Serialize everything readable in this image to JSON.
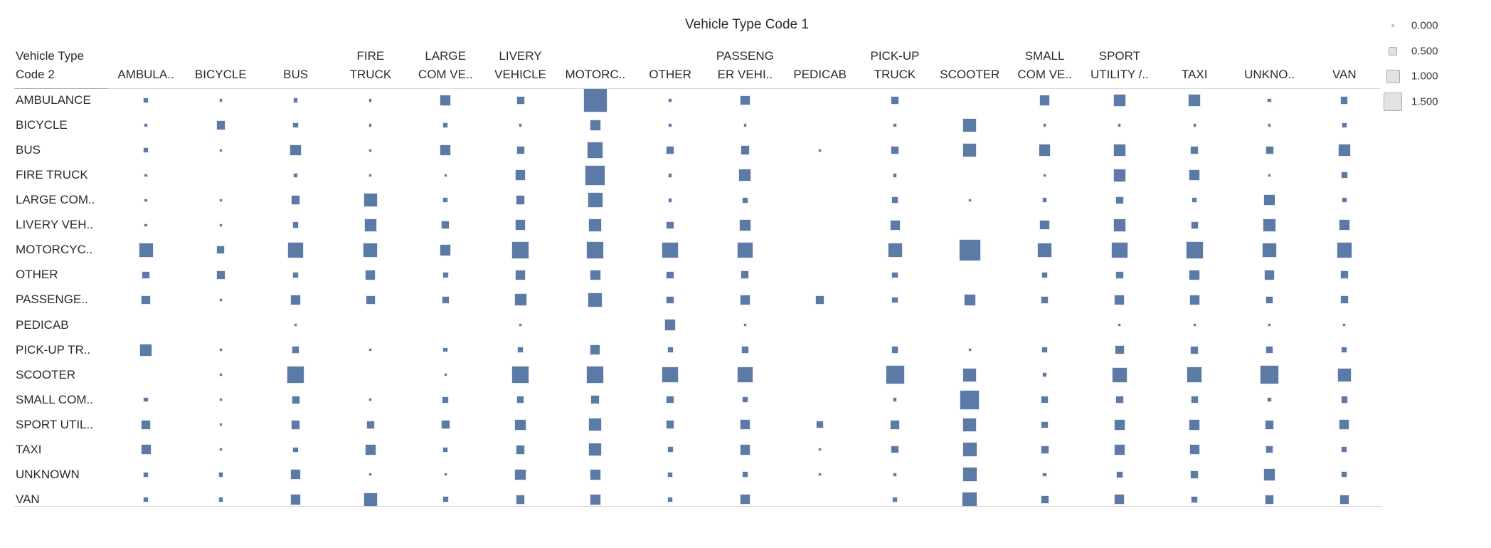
{
  "title": "Vehicle Type Code 1",
  "corner_label": "Vehicle Type\nCode 2",
  "colors": {
    "mark": "#5b7ba6",
    "mark_edge": "#e3e8f1",
    "legend_fill": "#e3e3e3",
    "legend_edge": "#ababab",
    "legend_dot": "#c0c0c0",
    "rule_light": "#d6d6d6",
    "rule_dark": "#a8a8a8",
    "text": "#2b2b2b"
  },
  "legend": {
    "items": [
      {
        "label": "0.000",
        "value": 0.0
      },
      {
        "label": "0.500",
        "value": 0.5
      },
      {
        "label": "1.000",
        "value": 1.0
      },
      {
        "label": "1.500",
        "value": 1.5
      }
    ]
  },
  "chart_data": {
    "type": "heatmap",
    "subtype": "size-encoded-matrix",
    "title": "Vehicle Type Code 1",
    "xlabel": "Vehicle Type Code 1",
    "ylabel": "Vehicle Type Code 2",
    "size_legend_ticks": [
      0.0,
      0.5,
      1.0,
      1.5
    ],
    "columns": [
      "AMBULA..",
      "BICYCLE",
      "BUS",
      "FIRE\nTRUCK",
      "LARGE\nCOM VE..",
      "LIVERY\nVEHICLE",
      "MOTORC..",
      "OTHER",
      "PASSENG\nER VEHI..",
      "PEDICAB",
      "PICK-UP\nTRUCK",
      "SCOOTER",
      "SMALL\nCOM VE..",
      "SPORT\nUTILITY /..",
      "TAXI",
      "UNKNO..",
      "VAN"
    ],
    "rows": [
      "AMBULANCE",
      "BICYCLE",
      "BUS",
      "FIRE TRUCK",
      "LARGE COM..",
      "LIVERY VEH..",
      "MOTORCYC..",
      "OTHER",
      "PASSENGE..",
      "PEDICAB",
      "PICK-UP TR..",
      "SCOOTER",
      "SMALL COM..",
      "SPORT UTIL..",
      "TAXI",
      "UNKNOWN",
      "VAN"
    ],
    "matrix": [
      [
        0.1,
        0.0,
        0.1,
        0.0,
        0.65,
        0.4,
        1.9,
        0.05,
        0.55,
        null,
        0.4,
        null,
        0.65,
        0.8,
        0.8,
        0.05,
        0.35
      ],
      [
        0.0,
        0.5,
        0.15,
        0.0,
        0.15,
        0.0,
        0.7,
        0.05,
        0.0,
        null,
        0.0,
        0.95,
        0.0,
        0.0,
        0.0,
        0.0,
        0.1
      ],
      [
        0.15,
        0.0,
        0.7,
        0.0,
        0.7,
        0.4,
        1.15,
        0.4,
        0.5,
        0.0,
        0.35,
        0.95,
        0.75,
        0.8,
        0.4,
        0.4,
        0.8
      ],
      [
        0.0,
        null,
        0.05,
        0.0,
        0.0,
        0.65,
        1.55,
        0.05,
        0.8,
        null,
        0.05,
        null,
        0.0,
        0.85,
        0.65,
        0.0,
        0.25
      ],
      [
        0.0,
        0.0,
        0.5,
        0.95,
        0.1,
        0.5,
        1.1,
        0.05,
        0.2,
        null,
        0.25,
        0.0,
        0.1,
        0.35,
        0.15,
        0.7,
        0.15
      ],
      [
        0.0,
        0.0,
        0.25,
        0.85,
        0.4,
        0.65,
        0.85,
        0.35,
        0.7,
        null,
        0.6,
        null,
        0.55,
        0.85,
        0.35,
        0.85,
        0.65
      ],
      [
        1.0,
        0.4,
        1.15,
        1.0,
        0.7,
        1.25,
        1.25,
        1.15,
        1.15,
        null,
        1.0,
        1.65,
        1.0,
        1.15,
        1.25,
        1.0,
        1.1
      ],
      [
        0.35,
        0.5,
        0.2,
        0.6,
        0.2,
        0.6,
        0.65,
        0.35,
        0.4,
        null,
        0.25,
        null,
        0.15,
        0.35,
        0.65,
        0.65,
        0.4
      ],
      [
        0.5,
        0.0,
        0.6,
        0.5,
        0.35,
        0.8,
        1.0,
        0.35,
        0.6,
        0.5,
        0.25,
        0.75,
        0.3,
        0.6,
        0.6,
        0.35,
        0.4
      ],
      [
        null,
        null,
        0.0,
        null,
        null,
        0.0,
        null,
        0.7,
        0.0,
        null,
        null,
        null,
        null,
        0.0,
        0.0,
        0.0,
        0.0
      ],
      [
        0.8,
        0.0,
        0.35,
        0.0,
        0.1,
        0.25,
        0.6,
        0.2,
        0.35,
        null,
        0.3,
        0.0,
        0.25,
        0.5,
        0.4,
        0.3,
        0.2
      ],
      [
        null,
        0.0,
        1.25,
        null,
        0.0,
        1.25,
        1.25,
        1.15,
        1.15,
        null,
        1.4,
        0.95,
        0.05,
        1.05,
        1.1,
        1.4,
        0.95
      ],
      [
        0.1,
        0.0,
        0.4,
        0.0,
        0.25,
        0.35,
        0.45,
        0.35,
        0.2,
        null,
        0.05,
        1.45,
        0.35,
        0.35,
        0.35,
        0.05,
        0.3
      ],
      [
        0.5,
        0.0,
        0.5,
        0.4,
        0.45,
        0.7,
        0.85,
        0.45,
        0.6,
        0.35,
        0.5,
        0.95,
        0.3,
        0.65,
        0.65,
        0.5,
        0.6
      ],
      [
        0.6,
        0.0,
        0.15,
        0.7,
        0.15,
        0.5,
        0.85,
        0.2,
        0.65,
        0.0,
        0.35,
        1.0,
        0.4,
        0.65,
        0.6,
        0.35,
        0.2
      ],
      [
        0.1,
        0.1,
        0.6,
        0.0,
        0.0,
        0.7,
        0.7,
        0.15,
        0.2,
        0.0,
        0.05,
        1.0,
        0.05,
        0.25,
        0.4,
        0.75,
        0.2
      ],
      [
        0.1,
        0.1,
        0.65,
        0.95,
        0.2,
        0.5,
        0.7,
        0.15,
        0.6,
        null,
        0.1,
        1.05,
        0.4,
        0.6,
        0.3,
        0.5,
        0.5
      ]
    ]
  }
}
